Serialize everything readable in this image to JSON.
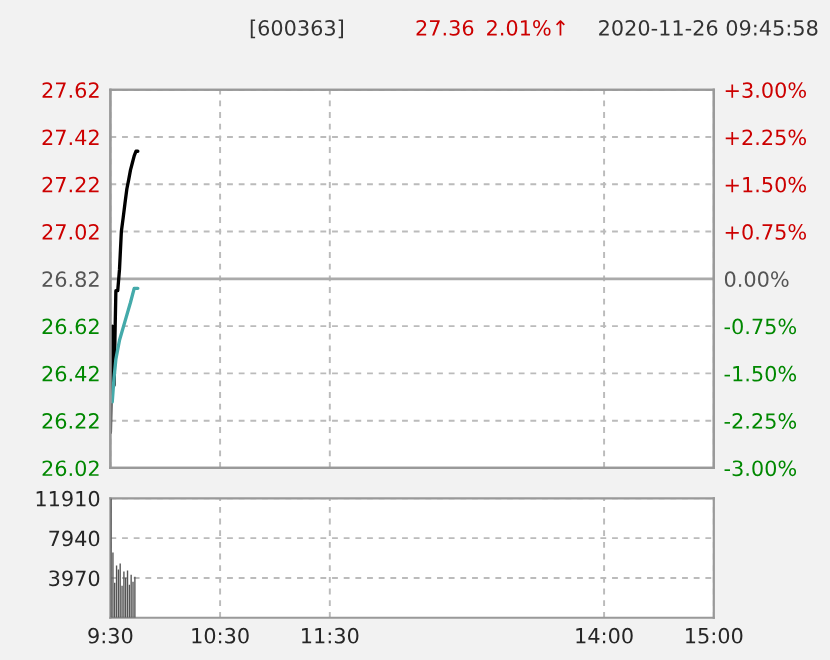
{
  "chart_data": [
    {
      "type": "line",
      "title": "[600363]",
      "annotations": [
        "27.36",
        "2.01%↑",
        "2020-11-26 09:45:58"
      ],
      "xlim": [
        9.5,
        15
      ],
      "xticks": [
        9.5,
        10.5,
        11.5,
        14,
        15
      ],
      "ylim": [
        26.02,
        27.62
      ],
      "yticks": [
        {
          "value": 26.02,
          "label": "26.02"
        },
        {
          "value": 26.22,
          "label": "26.22"
        },
        {
          "value": 26.42,
          "label": "26.42"
        },
        {
          "value": 26.62,
          "label": "26.62"
        },
        {
          "value": 26.82,
          "label": "26.82"
        },
        {
          "value": 27.02,
          "label": "27.02"
        },
        {
          "value": 27.22,
          "label": "27.22"
        },
        {
          "value": 27.42,
          "label": "27.42"
        },
        {
          "value": 27.62,
          "label": "27.62"
        }
      ],
      "y2lim": [
        -3,
        3
      ],
      "y2ticks": [
        {
          "value": -3,
          "label": "-3.00%"
        },
        {
          "value": -2.25,
          "label": "-2.25%"
        },
        {
          "value": -1.5,
          "label": "-1.50%"
        },
        {
          "value": -0.75,
          "label": "-0.75%"
        },
        {
          "value": 0,
          "label": "0.00%"
        },
        {
          "value": 0.75,
          "label": "+0.75%"
        },
        {
          "value": 1.5,
          "label": "+1.50%"
        },
        {
          "value": 2.25,
          "label": "+2.25%"
        },
        {
          "value": 3,
          "label": "+3.00%"
        }
      ],
      "ref_lines": [
        {
          "axis": "y",
          "value": 26.82,
          "color": "#aaaaaa"
        }
      ],
      "grid": true,
      "tick_labels": "y",
      "series": [
        {
          "color": "#000000",
          "x": [
            9.5,
            9.517,
            9.533,
            9.55,
            9.567,
            9.583,
            9.6,
            9.617,
            9.633,
            9.65,
            9.667,
            9.683,
            9.7,
            9.717,
            9.733,
            9.75
          ],
          "values": [
            26.17,
            26.62,
            26.37,
            26.77,
            26.77,
            26.86,
            27.02,
            27.08,
            27.14,
            27.2,
            27.24,
            27.28,
            27.31,
            27.34,
            27.36,
            27.36
          ]
        },
        {
          "color": "#44aaaa",
          "x": [
            9.517,
            9.533,
            9.55,
            9.583,
            9.633,
            9.683,
            9.717,
            9.75
          ],
          "values": [
            26.3,
            26.4,
            26.48,
            26.56,
            26.64,
            26.72,
            26.78,
            26.78
          ]
        }
      ]
    },
    {
      "type": "bar",
      "color": "#555555",
      "x": [
        9.5,
        9.517,
        9.533,
        9.55,
        9.567,
        9.583,
        9.6,
        9.617,
        9.633,
        9.65,
        9.667,
        9.683,
        9.7,
        9.717
      ],
      "values": [
        11900,
        6500,
        3500,
        5200,
        4800,
        5400,
        3200,
        4600,
        4000,
        4700,
        3300,
        4300,
        3600,
        4100
      ],
      "xlim": [
        9.5,
        15
      ],
      "xticks": [
        {
          "value": 9.5,
          "label": "9:30"
        },
        {
          "value": 10.5,
          "label": "10:30"
        },
        {
          "value": 11.5,
          "label": "11:30"
        },
        {
          "value": 14,
          "label": "14:00"
        },
        {
          "value": 15,
          "label": "15:00"
        }
      ],
      "ylim": [
        0,
        11910
      ],
      "yticks": [
        3970,
        7940,
        11910
      ],
      "grid": true
    }
  ]
}
